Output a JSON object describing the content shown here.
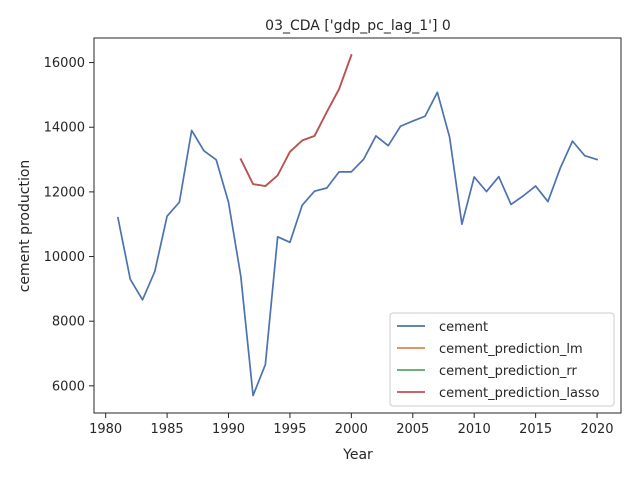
{
  "chart_data": {
    "type": "line",
    "title": "03_CDA ['gdp_pc_lag_1'] 0",
    "xlabel": "Year",
    "ylabel": "cement production",
    "xlim": [
      1979.05,
      2021.95
    ],
    "ylim": [
      5160,
      16760
    ],
    "xticks": [
      1980,
      1985,
      1990,
      1995,
      2000,
      2005,
      2010,
      2015,
      2020
    ],
    "yticks": [
      6000,
      8000,
      10000,
      12000,
      14000,
      16000
    ],
    "grid": false,
    "legend_position": "lower right",
    "series": [
      {
        "name": "cement",
        "color": "#4c72b0",
        "x": [
          1981,
          1982,
          1983,
          1984,
          1985,
          1986,
          1987,
          1988,
          1989,
          1990,
          1991,
          1992,
          1993,
          1994,
          1995,
          1996,
          1997,
          1998,
          1999,
          2000,
          2001,
          2002,
          2003,
          2004,
          2005,
          2006,
          2007,
          2008,
          2009,
          2010,
          2011,
          2012,
          2013,
          2014,
          2015,
          2016,
          2017,
          2018,
          2019,
          2020
        ],
        "y": [
          11200,
          9300,
          8660,
          9540,
          11250,
          11680,
          13900,
          13270,
          12990,
          11680,
          9390,
          5700,
          6660,
          10610,
          10440,
          11590,
          12020,
          12120,
          12620,
          12620,
          13010,
          13730,
          13430,
          14030,
          14190,
          14340,
          15080,
          13690,
          11000,
          12460,
          12010,
          12470,
          11610,
          11880,
          12180,
          11700,
          12730,
          13570,
          13120,
          13000
        ]
      },
      {
        "name": "cement_prediction_lm",
        "color": "#dd8452",
        "x": [
          1991,
          1992,
          1993,
          1994,
          1995,
          1996,
          1997,
          1998,
          1999,
          2000
        ],
        "y": [
          13010,
          12240,
          12180,
          12510,
          13240,
          13590,
          13730,
          14470,
          15180,
          16230
        ]
      },
      {
        "name": "cement_prediction_rr",
        "color": "#55a868",
        "x": [
          1991,
          1992,
          1993,
          1994,
          1995,
          1996,
          1997,
          1998,
          1999,
          2000
        ],
        "y": [
          13010,
          12240,
          12180,
          12510,
          13240,
          13590,
          13730,
          14470,
          15180,
          16230
        ]
      },
      {
        "name": "cement_prediction_lasso",
        "color": "#c44e52",
        "x": [
          1991,
          1992,
          1993,
          1994,
          1995,
          1996,
          1997,
          1998,
          1999,
          2000
        ],
        "y": [
          13010,
          12240,
          12180,
          12510,
          13240,
          13590,
          13730,
          14470,
          15180,
          16230
        ]
      }
    ]
  }
}
